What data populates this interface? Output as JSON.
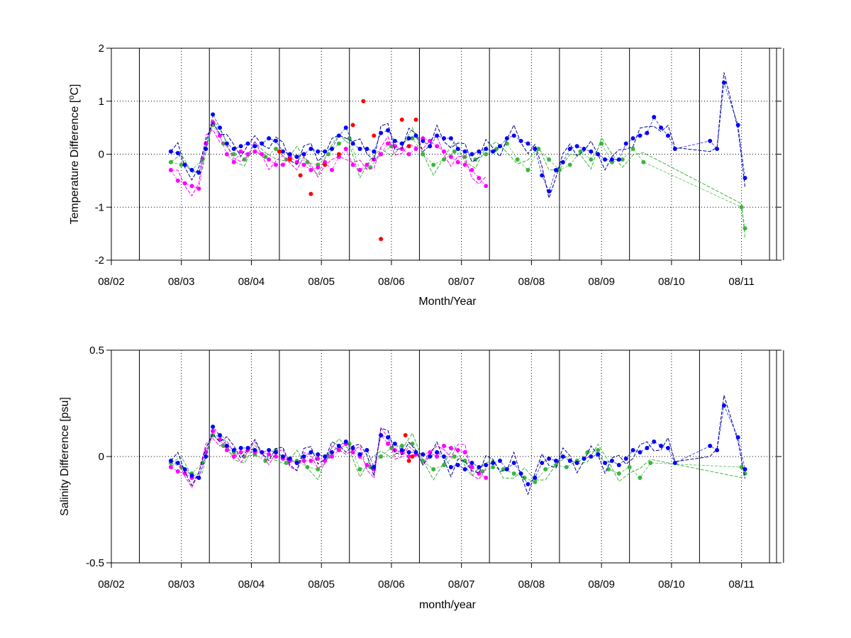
{
  "chart_data": [
    {
      "type": "line",
      "xlabel": "Month/Year",
      "ylabel": "Temperature Difference [",
      "ylabel_sup": "o",
      "ylabel_tail": "C]",
      "ylim": [
        -2,
        2
      ],
      "yticks": [
        2,
        1,
        0,
        -1,
        -2
      ],
      "ytick_labels": [
        "2",
        "1",
        "0",
        "-1",
        "-2"
      ],
      "xlim": [
        0,
        9.5
      ],
      "xticks": [
        0,
        1,
        2,
        3,
        4,
        5,
        6,
        7,
        8,
        9
      ],
      "xtick_labels": [
        "08/02",
        "08/03",
        "08/04",
        "08/05",
        "08/06",
        "08/07",
        "08/08",
        "08/09",
        "08/10",
        "08/11"
      ],
      "vertical_lines": [
        0.4,
        1.4,
        2.4,
        3.4,
        4.4,
        5.4,
        6.4,
        7.4,
        8.4,
        9.4,
        9.6
      ],
      "grid": "dotted at ticks",
      "colors": {
        "blue": "#0000ff",
        "green": "#3cb43c",
        "magenta": "#ff00ff",
        "red": "#ff0000",
        "navy": "#00008b"
      },
      "series": [
        {
          "color": "blue",
          "x": [
            0.85,
            0.95,
            1.05,
            1.15,
            1.25,
            1.35,
            1.45,
            1.55,
            1.65,
            1.75,
            1.85,
            1.95,
            2.05,
            2.15,
            2.25,
            2.35,
            2.45,
            2.55,
            2.65,
            2.75,
            2.85,
            2.95,
            3.05,
            3.15,
            3.25,
            3.35,
            3.45,
            3.55,
            3.65,
            3.75,
            3.85,
            3.95,
            4.05,
            4.15,
            4.25,
            4.35,
            4.45,
            4.55,
            4.65,
            4.75,
            4.85,
            4.95,
            5.05,
            5.15,
            5.25,
            5.35,
            5.45,
            5.55,
            5.65,
            5.75,
            5.85,
            5.95,
            6.05,
            6.15,
            6.25,
            6.35,
            6.45,
            6.55,
            6.65,
            6.75,
            6.85,
            6.95,
            7.05,
            7.15,
            7.25,
            7.35,
            7.45,
            7.55,
            7.65,
            7.75,
            7.85,
            7.95,
            8.05,
            8.55,
            8.65,
            8.75,
            8.95,
            9.05
          ],
          "y": [
            0.05,
            0.02,
            -0.2,
            -0.3,
            -0.35,
            0.1,
            0.75,
            0.5,
            0.2,
            0.1,
            0.15,
            0.2,
            0.15,
            0.2,
            0.3,
            0.25,
            0.05,
            0.0,
            -0.05,
            0.0,
            0.1,
            0.05,
            0.05,
            0.1,
            0.35,
            0.5,
            0.2,
            0.1,
            0.1,
            0.05,
            0.4,
            0.45,
            0.25,
            0.2,
            0.3,
            0.35,
            0.25,
            0.15,
            0.35,
            0.3,
            0.3,
            0.1,
            0.05,
            0.0,
            0.05,
            0.1,
            0.05,
            0.15,
            0.3,
            0.35,
            0.25,
            0.2,
            0.1,
            -0.4,
            -0.7,
            -0.3,
            -0.15,
            0.1,
            0.15,
            0.1,
            0.05,
            0.0,
            -0.1,
            -0.1,
            -0.1,
            0.2,
            0.3,
            0.35,
            0.4,
            0.7,
            0.5,
            0.35,
            0.1,
            0.25,
            0.1,
            1.35,
            0.55,
            -0.45
          ]
        },
        {
          "color": "green",
          "x": [
            0.85,
            1.0,
            1.15,
            1.3,
            1.45,
            1.6,
            1.75,
            1.9,
            2.05,
            2.2,
            2.35,
            2.5,
            2.65,
            2.8,
            2.95,
            3.1,
            3.25,
            3.4,
            3.55,
            3.7,
            3.85,
            4.0,
            4.15,
            4.3,
            4.45,
            4.6,
            4.75,
            4.9,
            5.05,
            5.2,
            5.35,
            5.5,
            5.65,
            5.8,
            5.95,
            6.1,
            6.25,
            6.4,
            6.55,
            6.7,
            6.85,
            7.0,
            7.15,
            7.3,
            7.45,
            7.6,
            9.0,
            9.05
          ],
          "y": [
            -0.15,
            -0.2,
            -0.3,
            -0.1,
            0.55,
            0.2,
            0.0,
            -0.1,
            0.05,
            -0.05,
            0.1,
            -0.1,
            -0.05,
            -0.15,
            -0.2,
            0.0,
            0.2,
            0.3,
            -0.3,
            -0.25,
            0.0,
            0.15,
            0.2,
            0.3,
            0.0,
            -0.2,
            -0.1,
            0.05,
            -0.05,
            -0.1,
            0.0,
            0.1,
            0.2,
            -0.1,
            -0.3,
            0.1,
            -0.1,
            -0.3,
            -0.2,
            0.05,
            -0.1,
            0.2,
            -0.15,
            -0.1,
            0.1,
            -0.15,
            -1.0,
            -1.4
          ]
        },
        {
          "color": "magenta",
          "x": [
            0.85,
            0.95,
            1.05,
            1.15,
            1.25,
            1.35,
            1.45,
            1.55,
            1.65,
            1.75,
            1.85,
            1.95,
            2.05,
            2.15,
            2.25,
            2.35,
            2.45,
            2.55,
            2.65,
            2.75,
            2.85,
            2.95,
            3.05,
            3.15,
            3.25,
            3.35,
            3.45,
            3.55,
            3.65,
            3.75,
            3.85,
            3.95,
            4.05,
            4.15,
            4.25,
            4.35,
            4.45,
            4.55,
            4.65,
            4.75,
            4.85,
            4.95,
            5.05,
            5.15,
            5.25,
            5.35
          ],
          "y": [
            -0.3,
            -0.5,
            -0.55,
            -0.6,
            -0.65,
            0.2,
            0.6,
            0.35,
            0.0,
            -0.15,
            0.05,
            0.0,
            0.05,
            0.0,
            -0.1,
            -0.2,
            -0.2,
            -0.05,
            -0.15,
            -0.2,
            -0.3,
            -0.25,
            -0.15,
            -0.3,
            -0.05,
            0.1,
            -0.2,
            -0.3,
            -0.2,
            -0.1,
            0.0,
            0.2,
            0.15,
            0.1,
            0.0,
            0.1,
            0.3,
            0.25,
            0.15,
            0.05,
            -0.05,
            -0.15,
            -0.2,
            -0.3,
            -0.45,
            -0.6
          ]
        },
        {
          "color": "red",
          "x": [
            2.4,
            2.55,
            2.7,
            2.85,
            3.05,
            3.25,
            3.45,
            3.6,
            3.75,
            3.85,
            4.15,
            4.25,
            4.35
          ],
          "y": [
            0.05,
            -0.1,
            -0.4,
            -0.75,
            -0.2,
            0.0,
            0.55,
            1.0,
            0.35,
            -1.6,
            0.65,
            0.15,
            0.65
          ]
        }
      ]
    },
    {
      "type": "line",
      "xlabel": "month/year",
      "ylabel": "Salinity Difference [psu]",
      "ylim": [
        -0.5,
        0.5
      ],
      "yticks": [
        0.5,
        0,
        -0.5
      ],
      "ytick_labels": [
        "0.5",
        "0",
        "-0.5"
      ],
      "xlim": [
        0,
        9.5
      ],
      "xticks": [
        0,
        1,
        2,
        3,
        4,
        5,
        6,
        7,
        8,
        9
      ],
      "xtick_labels": [
        "08/02",
        "08/03",
        "08/04",
        "08/05",
        "08/06",
        "08/07",
        "08/08",
        "08/09",
        "08/10",
        "08/11"
      ],
      "vertical_lines": [
        0.4,
        1.4,
        2.4,
        3.4,
        4.4,
        5.4,
        6.4,
        7.4,
        8.4,
        9.4,
        9.6
      ],
      "grid": "dotted at ticks",
      "colors": {
        "blue": "#0000ff",
        "green": "#3cb43c",
        "magenta": "#ff00ff",
        "red": "#ff0000",
        "navy": "#00008b"
      },
      "series": [
        {
          "color": "blue",
          "x": [
            0.85,
            0.95,
            1.05,
            1.15,
            1.25,
            1.35,
            1.45,
            1.55,
            1.65,
            1.75,
            1.85,
            1.95,
            2.05,
            2.15,
            2.25,
            2.35,
            2.45,
            2.55,
            2.65,
            2.75,
            2.85,
            2.95,
            3.05,
            3.15,
            3.25,
            3.35,
            3.45,
            3.55,
            3.65,
            3.75,
            3.85,
            3.95,
            4.05,
            4.15,
            4.25,
            4.35,
            4.45,
            4.55,
            4.65,
            4.75,
            4.85,
            4.95,
            5.05,
            5.15,
            5.25,
            5.35,
            5.45,
            5.55,
            5.65,
            5.75,
            5.85,
            5.95,
            6.05,
            6.15,
            6.25,
            6.35,
            6.45,
            6.55,
            6.65,
            6.75,
            6.85,
            6.95,
            7.05,
            7.15,
            7.25,
            7.35,
            7.45,
            7.55,
            7.65,
            7.75,
            7.85,
            7.95,
            8.05,
            8.55,
            8.65,
            8.75,
            8.95,
            9.05
          ],
          "y": [
            -0.02,
            -0.03,
            -0.06,
            -0.09,
            -0.1,
            0.0,
            0.14,
            0.1,
            0.05,
            0.03,
            0.04,
            0.04,
            0.03,
            0.02,
            0.03,
            0.02,
            0.0,
            -0.01,
            -0.03,
            0.0,
            0.02,
            0.01,
            0.0,
            0.02,
            0.05,
            0.07,
            0.04,
            0.01,
            0.03,
            -0.05,
            0.1,
            0.09,
            0.06,
            0.03,
            0.02,
            0.02,
            0.01,
            0.0,
            0.02,
            0.0,
            -0.05,
            -0.04,
            -0.06,
            -0.03,
            -0.05,
            -0.04,
            -0.03,
            -0.02,
            -0.06,
            -0.03,
            -0.08,
            -0.13,
            -0.1,
            -0.03,
            -0.01,
            -0.02,
            0.0,
            -0.02,
            -0.03,
            -0.01,
            0.0,
            0.01,
            -0.03,
            -0.02,
            -0.04,
            -0.01,
            0.03,
            0.02,
            0.04,
            0.07,
            0.05,
            0.04,
            -0.03,
            0.05,
            0.03,
            0.24,
            0.09,
            -0.06
          ]
        },
        {
          "color": "green",
          "x": [
            0.85,
            1.0,
            1.15,
            1.3,
            1.45,
            1.6,
            1.75,
            1.9,
            2.05,
            2.2,
            2.35,
            2.5,
            2.65,
            2.8,
            2.95,
            3.1,
            3.25,
            3.4,
            3.55,
            3.7,
            3.85,
            4.0,
            4.15,
            4.3,
            4.45,
            4.6,
            4.75,
            4.9,
            5.05,
            5.15,
            5.3,
            5.45,
            5.6,
            5.75,
            5.9,
            6.05,
            6.2,
            6.35,
            6.5,
            6.65,
            6.8,
            6.95,
            7.1,
            7.25,
            7.4,
            7.55,
            7.7,
            9.0,
            9.05
          ],
          "y": [
            -0.03,
            -0.05,
            -0.08,
            -0.03,
            0.1,
            0.05,
            0.02,
            0.0,
            0.01,
            -0.02,
            0.03,
            -0.03,
            -0.02,
            -0.05,
            -0.06,
            0.0,
            0.04,
            0.06,
            -0.06,
            -0.05,
            0.0,
            0.04,
            0.05,
            0.06,
            -0.02,
            -0.06,
            -0.04,
            0.0,
            -0.02,
            -0.05,
            -0.07,
            -0.05,
            -0.06,
            -0.08,
            -0.1,
            -0.12,
            -0.06,
            -0.04,
            -0.05,
            -0.02,
            0.02,
            0.03,
            -0.06,
            -0.08,
            -0.05,
            -0.1,
            -0.03,
            -0.05,
            -0.08
          ]
        },
        {
          "color": "magenta",
          "x": [
            0.85,
            0.95,
            1.05,
            1.15,
            1.25,
            1.35,
            1.45,
            1.55,
            1.65,
            1.75,
            1.85,
            1.95,
            2.05,
            2.15,
            2.25,
            2.35,
            2.45,
            2.55,
            2.65,
            2.75,
            2.85,
            2.95,
            3.05,
            3.15,
            3.25,
            3.35,
            3.45,
            3.55,
            3.65,
            3.75,
            3.85,
            3.95,
            4.05,
            4.15,
            4.25,
            4.35,
            4.45,
            4.55,
            4.65,
            4.75,
            4.85,
            4.95,
            5.05,
            5.15,
            5.25,
            5.35
          ],
          "y": [
            -0.05,
            -0.07,
            -0.08,
            -0.1,
            -0.1,
            0.02,
            0.12,
            0.08,
            0.03,
            0.0,
            0.02,
            0.03,
            0.02,
            0.02,
            0.01,
            0.0,
            -0.01,
            -0.02,
            -0.03,
            -0.02,
            -0.02,
            -0.01,
            -0.02,
            0.0,
            0.03,
            0.06,
            0.02,
            0.0,
            -0.04,
            -0.06,
            0.1,
            0.06,
            0.03,
            0.02,
            0.0,
            0.01,
            0.01,
            0.02,
            0.0,
            0.05,
            0.04,
            0.03,
            0.02,
            -0.05,
            -0.08,
            -0.1
          ]
        },
        {
          "color": "red",
          "x": [
            4.2,
            4.25,
            4.3
          ],
          "y": [
            0.1,
            -0.02,
            0.0
          ]
        }
      ]
    }
  ]
}
